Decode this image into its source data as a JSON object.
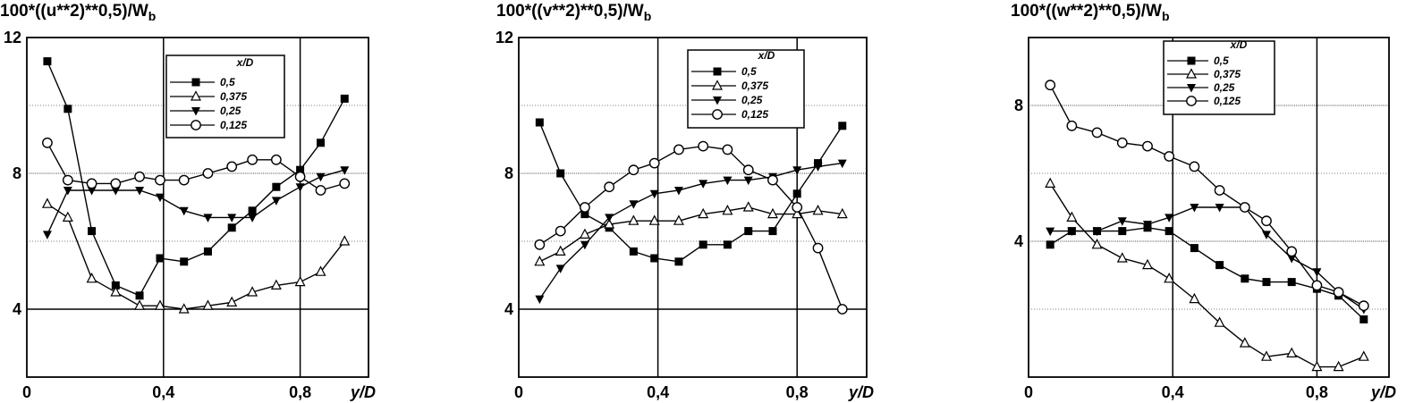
{
  "charts": [
    {
      "title_main": "100*((u**2)**0,5)/W",
      "title_sub": "b",
      "ylabel": "100*((u**2)**0,5)/W_b",
      "xlabel": "y/D",
      "xlim": [
        0,
        1.0
      ],
      "ylim": [
        2,
        12
      ],
      "xticks": [
        "0",
        "0,4",
        "0,8"
      ],
      "xtick_values": [
        0,
        0.4,
        0.8
      ],
      "yticks": [
        "12",
        "8",
        "4"
      ],
      "ytick_values": [
        12,
        8,
        4
      ],
      "legend_title": "x/D",
      "legend_labels": [
        "0,5",
        "0,375",
        "0,25",
        "0,125"
      ]
    },
    {
      "title_main": "100*((v**2)**0,5)/W",
      "title_sub": "b",
      "ylabel": "100*((v**2)**0,5)/W_b",
      "xlabel": "y/D",
      "xlim": [
        0,
        1.0
      ],
      "ylim": [
        2,
        12
      ],
      "xticks": [
        "0",
        "0,4",
        "0,8"
      ],
      "xtick_values": [
        0,
        0.4,
        0.8
      ],
      "yticks": [
        "12",
        "8",
        "4"
      ],
      "ytick_values": [
        12,
        8,
        4
      ],
      "legend_title": "x/D",
      "legend_labels": [
        "0,5",
        "0,375",
        "0,25",
        "0,125"
      ]
    },
    {
      "title_main": "100*((w**2)**0,5)/W",
      "title_sub": "b",
      "ylabel": "100*((w**2)**0,5)/W_b",
      "xlabel": "y/D",
      "xlim": [
        0,
        1.0
      ],
      "ylim": [
        0,
        10
      ],
      "xticks": [
        "0",
        "0,4",
        "0,8"
      ],
      "xtick_values": [
        0,
        0.4,
        0.8
      ],
      "yticks": [
        "8",
        "4"
      ],
      "ytick_values": [
        8,
        4
      ],
      "legend_title": "x/D",
      "legend_labels": [
        "0,5",
        "0,375",
        "0,25",
        "0,125"
      ]
    }
  ],
  "chart_data": [
    {
      "type": "line",
      "xlabel": "y/D",
      "ylabel": "100*((u**2)**0,5)/W_b",
      "xlim": [
        0,
        1.0
      ],
      "ylim": [
        2,
        12
      ],
      "grid": true,
      "legend_position": "top-center",
      "x": [
        0.06,
        0.12,
        0.19,
        0.26,
        0.33,
        0.39,
        0.46,
        0.53,
        0.6,
        0.66,
        0.73,
        0.8,
        0.86,
        0.93
      ],
      "series": [
        {
          "name": "0,5",
          "marker": "square-filled",
          "values": [
            11.3,
            9.9,
            6.3,
            4.7,
            4.4,
            5.5,
            5.4,
            5.7,
            6.4,
            6.9,
            7.6,
            8.1,
            8.9,
            10.2
          ]
        },
        {
          "name": "0,375",
          "marker": "triangle-up-open",
          "values": [
            7.1,
            6.7,
            4.9,
            4.5,
            4.1,
            4.1,
            4.0,
            4.1,
            4.2,
            4.5,
            4.7,
            4.8,
            5.1,
            6.0
          ]
        },
        {
          "name": "0,25",
          "marker": "triangle-down-filled",
          "values": [
            6.2,
            7.5,
            7.5,
            7.5,
            7.5,
            7.3,
            6.9,
            6.7,
            6.7,
            6.7,
            7.2,
            7.6,
            7.9,
            8.1
          ]
        },
        {
          "name": "0,125",
          "marker": "circle-open",
          "values": [
            8.9,
            7.8,
            7.7,
            7.7,
            7.9,
            7.8,
            7.8,
            8.0,
            8.2,
            8.4,
            8.4,
            7.9,
            7.5,
            7.7
          ]
        }
      ]
    },
    {
      "type": "line",
      "xlabel": "y/D",
      "ylabel": "100*((v**2)**0,5)/W_b",
      "xlim": [
        0,
        1.0
      ],
      "ylim": [
        2,
        12
      ],
      "grid": true,
      "legend_position": "top-center",
      "x": [
        0.06,
        0.12,
        0.19,
        0.26,
        0.33,
        0.39,
        0.46,
        0.53,
        0.6,
        0.66,
        0.73,
        0.8,
        0.86,
        0.93
      ],
      "series": [
        {
          "name": "0,5",
          "marker": "square-filled",
          "values": [
            9.5,
            8.0,
            6.8,
            6.4,
            5.7,
            5.5,
            5.4,
            5.9,
            5.9,
            6.3,
            6.3,
            7.4,
            8.3,
            9.4
          ]
        },
        {
          "name": "0,375",
          "marker": "triangle-up-open",
          "values": [
            5.4,
            5.7,
            6.2,
            6.5,
            6.6,
            6.6,
            6.6,
            6.8,
            6.9,
            7.0,
            6.8,
            6.8,
            6.9,
            6.8
          ]
        },
        {
          "name": "0,25",
          "marker": "triangle-down-filled",
          "values": [
            4.3,
            5.2,
            5.9,
            6.7,
            7.1,
            7.4,
            7.5,
            7.7,
            7.8,
            7.8,
            7.9,
            8.1,
            8.2,
            8.3
          ]
        },
        {
          "name": "0,125",
          "marker": "circle-open",
          "values": [
            5.9,
            6.3,
            7.0,
            7.6,
            8.1,
            8.3,
            8.7,
            8.8,
            8.7,
            8.1,
            7.8,
            7.0,
            5.8,
            4.0
          ]
        }
      ]
    },
    {
      "type": "line",
      "xlabel": "y/D",
      "ylabel": "100*((w**2)**0,5)/W_b",
      "xlim": [
        0,
        1.0
      ],
      "ylim": [
        0,
        10
      ],
      "grid": true,
      "legend_position": "top-center",
      "x": [
        0.06,
        0.12,
        0.19,
        0.26,
        0.33,
        0.39,
        0.46,
        0.53,
        0.6,
        0.66,
        0.73,
        0.8,
        0.86,
        0.93
      ],
      "series": [
        {
          "name": "0,5",
          "marker": "square-filled",
          "values": [
            3.9,
            4.3,
            4.3,
            4.3,
            4.4,
            4.3,
            3.8,
            3.3,
            2.9,
            2.8,
            2.8,
            2.6,
            2.4,
            1.7
          ]
        },
        {
          "name": "0,375",
          "marker": "triangle-up-open",
          "values": [
            5.7,
            4.7,
            3.9,
            3.5,
            3.3,
            2.9,
            2.3,
            1.6,
            1.0,
            0.6,
            0.7,
            0.3,
            0.3,
            0.6
          ]
        },
        {
          "name": "0,25",
          "marker": "triangle-down-filled",
          "values": [
            4.3,
            4.3,
            4.3,
            4.6,
            4.5,
            4.7,
            5.0,
            5.0,
            5.0,
            4.2,
            3.5,
            3.1,
            2.5,
            2.0
          ]
        },
        {
          "name": "0,125",
          "marker": "circle-open",
          "values": [
            8.6,
            7.4,
            7.2,
            6.9,
            6.8,
            6.5,
            6.2,
            5.5,
            5.0,
            4.6,
            3.7,
            2.7,
            2.5,
            2.1
          ]
        }
      ]
    }
  ]
}
